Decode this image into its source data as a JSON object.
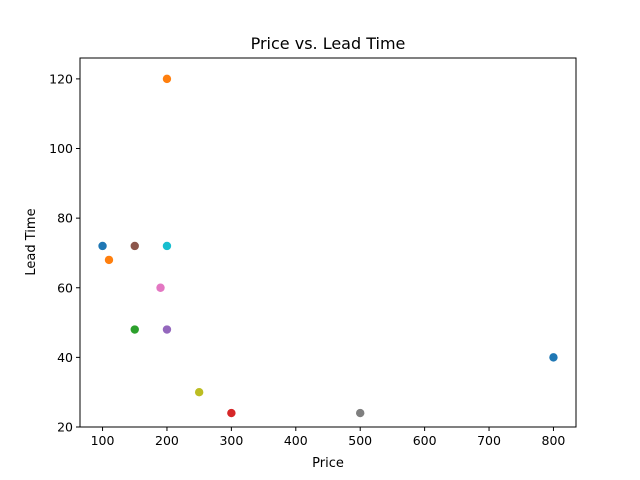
{
  "chart_data": {
    "type": "scatter",
    "title": "Price vs. Lead Time",
    "xlabel": "Price",
    "ylabel": "Lead Time",
    "xlim": [
      65,
      835
    ],
    "ylim": [
      20,
      126
    ],
    "xticks": [
      100,
      200,
      300,
      400,
      500,
      600,
      700,
      800
    ],
    "yticks": [
      20,
      40,
      60,
      80,
      100,
      120
    ],
    "grid": false,
    "points": [
      {
        "x": 100,
        "y": 72,
        "color": "#1f77b4"
      },
      {
        "x": 200,
        "y": 120,
        "color": "#ff7f0e"
      },
      {
        "x": 150,
        "y": 48,
        "color": "#2ca02c"
      },
      {
        "x": 300,
        "y": 24,
        "color": "#d62728"
      },
      {
        "x": 200,
        "y": 48,
        "color": "#9467bd"
      },
      {
        "x": 150,
        "y": 72,
        "color": "#8c564b"
      },
      {
        "x": 190,
        "y": 60,
        "color": "#e377c2"
      },
      {
        "x": 500,
        "y": 24,
        "color": "#7f7f7f"
      },
      {
        "x": 250,
        "y": 30,
        "color": "#bcbd22"
      },
      {
        "x": 200,
        "y": 72,
        "color": "#17becf"
      },
      {
        "x": 800,
        "y": 40,
        "color": "#1f77b4"
      },
      {
        "x": 110,
        "y": 68,
        "color": "#ff7f0e"
      }
    ]
  }
}
